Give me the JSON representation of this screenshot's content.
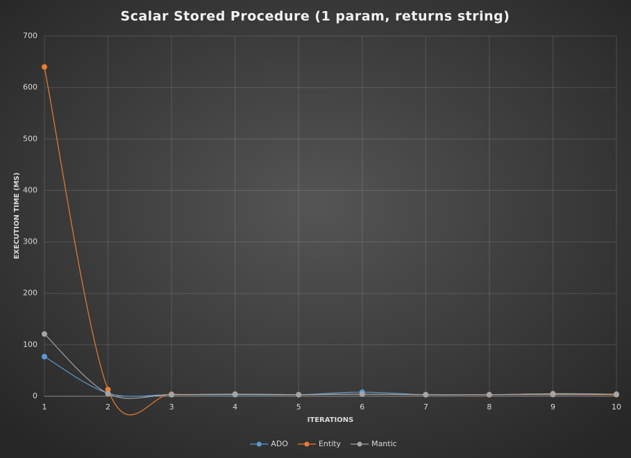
{
  "chart_data": {
    "type": "line",
    "title": "Scalar Stored Procedure (1 param, returns string)",
    "x_label": "ITERATIONS",
    "y_label": "EXECUTION TIME (MS)",
    "x": [
      1,
      2,
      3,
      4,
      5,
      6,
      7,
      8,
      9,
      10
    ],
    "series": [
      {
        "name": "ADO",
        "color": "#5b9bd5",
        "values": [
          77,
          6,
          3,
          3,
          3,
          8,
          3,
          3,
          3,
          3
        ]
      },
      {
        "name": "Entity",
        "color": "#ed7d31",
        "values": [
          640,
          13,
          4,
          4,
          3,
          4,
          3,
          3,
          4,
          3
        ]
      },
      {
        "name": "Mantic",
        "color": "#a5a5a5",
        "values": [
          121,
          5,
          3,
          4,
          3,
          4,
          3,
          3,
          5,
          4
        ]
      }
    ],
    "xlim": [
      1,
      10
    ],
    "xticks": [
      1,
      2,
      3,
      4,
      5,
      6,
      7,
      8,
      9,
      10
    ],
    "ylim": [
      0,
      700
    ],
    "yticks": [
      0,
      100,
      200,
      300,
      400,
      500,
      600,
      700
    ],
    "grid": true,
    "smooth": true,
    "legend": "bottom"
  }
}
